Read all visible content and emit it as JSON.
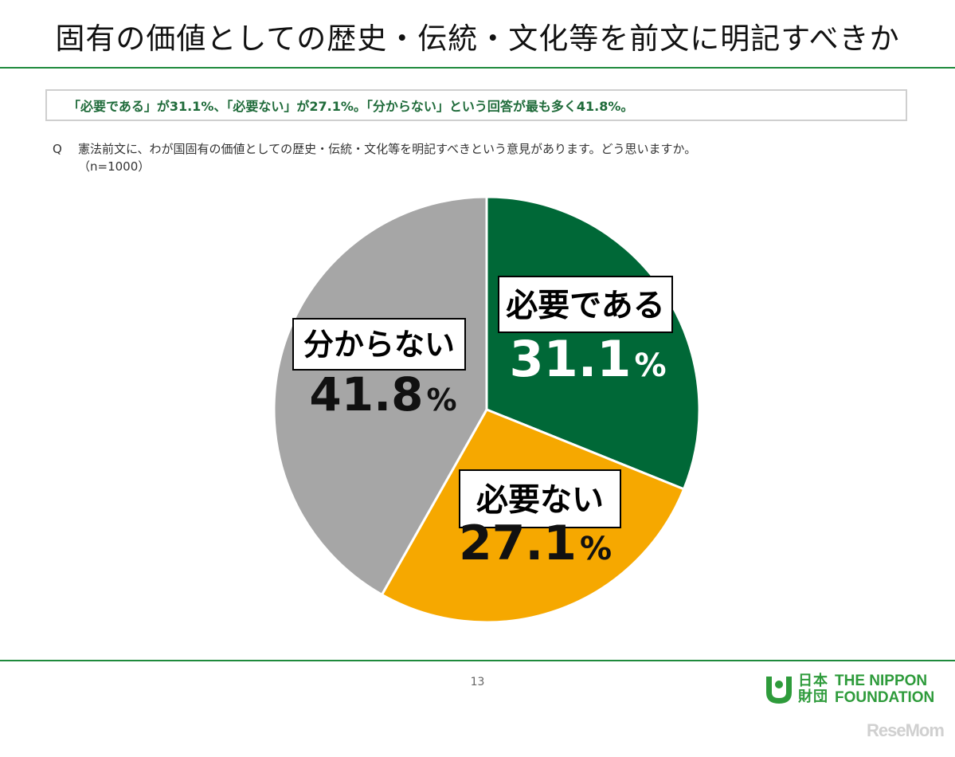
{
  "title": "固有の価値としての歴史・伝統・文化等を前文に明記すべきか",
  "summary": "「必要である」が31.1%、「必要ない」が27.1%。「分からない」という回答が最も多く41.8%。",
  "question": {
    "marker": "Q",
    "text": "憲法前文に、わが国固有の価値としての歴史・伝統・文化等を明記すべきという意見があります。どう思いますか。",
    "sample": "（n=1000）"
  },
  "chart_data": {
    "type": "pie",
    "start": "12 o'clock, clockwise",
    "slices": [
      {
        "label": "必要である",
        "value": 31.1,
        "value_label": "31.1",
        "unit": "%",
        "color": "#006837",
        "value_color": "#ffffff"
      },
      {
        "label": "必要ない",
        "value": 27.1,
        "value_label": "27.1",
        "unit": "%",
        "color": "#f6a800",
        "value_color": "#111111"
      },
      {
        "label": "分からない",
        "value": 41.8,
        "value_label": "41.8",
        "unit": "%",
        "color": "#a6a6a6",
        "value_color": "#111111"
      }
    ]
  },
  "footer": {
    "page_number": "13",
    "logo_ja_line1": "日本",
    "logo_ja_line2": "財団",
    "logo_en_line1": "THE NIPPON",
    "logo_en_line2": "FOUNDATION",
    "watermark": "ReseMom"
  },
  "colors": {
    "accent_green": "#1e8a3c",
    "summary_text": "#1f6b3a",
    "logo_green": "#2e9b3b"
  }
}
